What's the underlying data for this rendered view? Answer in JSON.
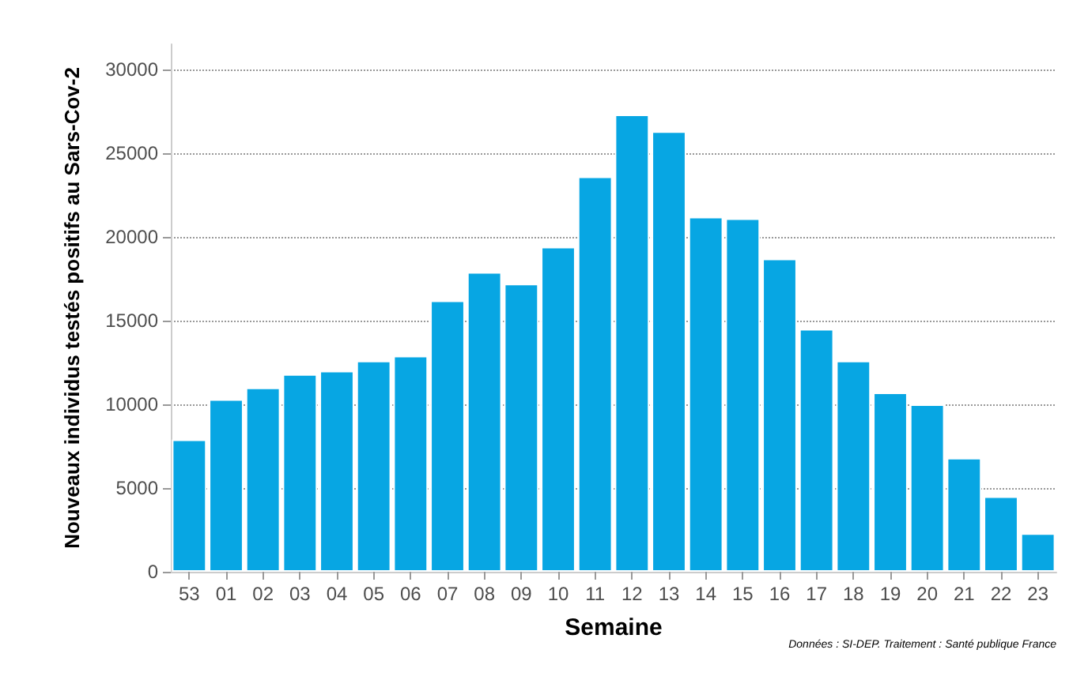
{
  "chart_data": {
    "type": "bar",
    "xlabel": "Semaine",
    "ylabel": "Nouveaux individus testés positifs au Sars-Cov-2",
    "categories": [
      "53",
      "01",
      "02",
      "03",
      "04",
      "05",
      "06",
      "07",
      "08",
      "09",
      "10",
      "11",
      "12",
      "13",
      "14",
      "15",
      "16",
      "17",
      "18",
      "19",
      "20",
      "21",
      "22",
      "23"
    ],
    "values": [
      7900,
      10300,
      11000,
      11800,
      12000,
      12600,
      12900,
      16200,
      17900,
      17200,
      19400,
      23600,
      27300,
      26300,
      21200,
      21100,
      18700,
      14500,
      12600,
      10700,
      10000,
      6800,
      4500,
      2300
    ],
    "color": "#07a6e3",
    "ylim": [
      0,
      31500
    ],
    "yticks": [
      0,
      5000,
      10000,
      15000,
      20000,
      25000,
      30000
    ],
    "grid": "y",
    "annotations": [
      "Données : SI-DEP. Traitement : Santé publique France"
    ]
  }
}
